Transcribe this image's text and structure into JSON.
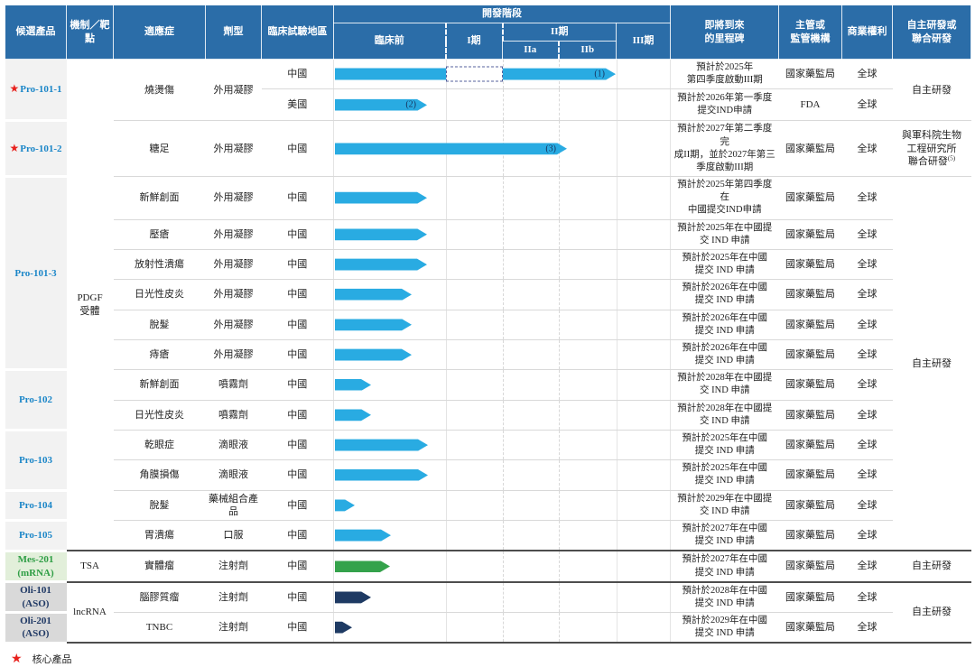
{
  "header": {
    "candidate": "候選產品",
    "mechanism": "機制／靶點",
    "indication": "適應症",
    "form": "劑型",
    "region": "臨床試驗地區",
    "stage_title": "開發階段",
    "preclinical": "臨床前",
    "phase1": "I期",
    "phase2": "II期",
    "phase2a": "IIa",
    "phase2b": "IIb",
    "phase3": "III期",
    "milestone": "即將到來\n的里程碑",
    "regulator": "主管或\n監管機構",
    "rights": "商業權利",
    "development": "自主研發或\n聯合研發"
  },
  "legend": {
    "star": "★",
    "label": "核心產品"
  },
  "colors": {
    "header_bg": "#2b6da8",
    "bar_blue": "#29abe2",
    "bar_green": "#34a24b",
    "bar_navy": "#1e3a63",
    "product_blue": "#1b86c8",
    "product_green": "#2f9e45",
    "product_navy": "#1f3864",
    "star_red": "#e8211d"
  },
  "rows": [
    {
      "product": {
        "text": "Pro-101-1",
        "star": true,
        "style": "blue",
        "span": 2
      },
      "mechanism": {
        "text": "PDGF\n受體",
        "span": 15
      },
      "indication": {
        "text": "燒燙傷",
        "span": 2
      },
      "form": {
        "text": "外用凝膠",
        "span": 2
      },
      "region": "中國",
      "bar": {
        "color": "blue",
        "start": 1,
        "end": 312,
        "gap": [
          124,
          187
        ],
        "label": "(1)"
      },
      "milestone": "預計於2025年\n第四季度啟動III期",
      "regulator": "國家藥監局",
      "rights": "全球",
      "development": {
        "text": "自主研發",
        "span": 2
      }
    },
    {
      "region": "美國",
      "bar": {
        "color": "blue",
        "start": 1,
        "end": 103,
        "label": "(2)"
      },
      "milestone": "預計於2026年第一季度\n提交IND申請",
      "regulator": "FDA",
      "rights": "全球"
    },
    {
      "product": {
        "text": "Pro-101-2",
        "star": true,
        "style": "blue"
      },
      "indication": "糖足",
      "form": "外用凝膠",
      "region": "中國",
      "bar": {
        "color": "blue",
        "start": 1,
        "end": 258,
        "label": "(3)"
      },
      "milestone": "預計於2027年第二季度完\n成II期，並於2027年第三\n季度啟動III期",
      "regulator": "國家藥監局",
      "rights": "全球",
      "development": {
        "text": "與軍科院生物\n工程研究所\n聯合研發",
        "sup": "(5)"
      }
    },
    {
      "product": {
        "text": "Pro-101-3",
        "style": "blue",
        "span": 6
      },
      "indication": "新鮮創面",
      "form": "外用凝膠",
      "region": "中國",
      "bar": {
        "color": "blue",
        "start": 1,
        "end": 103
      },
      "milestone": "預計於2025年第四季度在\n中國提交IND申請",
      "regulator": "國家藥監局",
      "rights": "全球",
      "development": {
        "text": "自主研發",
        "span": 12
      }
    },
    {
      "indication": "壓瘡",
      "form": "外用凝膠",
      "region": "中國",
      "bar": {
        "color": "blue",
        "start": 1,
        "end": 103
      },
      "milestone": "預計於2025年在中國提\n交 IND 申請",
      "regulator": "國家藥監局",
      "rights": "全球"
    },
    {
      "indication": "放射性潰瘍",
      "form": "外用凝膠",
      "region": "中國",
      "bar": {
        "color": "blue",
        "start": 1,
        "end": 103
      },
      "milestone": "預計於2025年在中國\n提交 IND 申請",
      "regulator": "國家藥監局",
      "rights": "全球"
    },
    {
      "indication": "日光性皮炎",
      "form": "外用凝膠",
      "region": "中國",
      "bar": {
        "color": "blue",
        "start": 1,
        "end": 86
      },
      "milestone": "預計於2026年在中國\n提交 IND 申請",
      "regulator": "國家藥監局",
      "rights": "全球"
    },
    {
      "indication": "脫髮",
      "form": "外用凝膠",
      "region": "中國",
      "bar": {
        "color": "blue",
        "start": 1,
        "end": 86
      },
      "milestone": "預計於2026年在中國\n提交 IND 申請",
      "regulator": "國家藥監局",
      "rights": "全球"
    },
    {
      "indication": "痔瘡",
      "form": "外用凝膠",
      "region": "中國",
      "bar": {
        "color": "blue",
        "start": 1,
        "end": 86
      },
      "milestone": "預計於2026年在中國\n提交 IND 申請",
      "regulator": "國家藥監局",
      "rights": "全球"
    },
    {
      "product": {
        "text": "Pro-102",
        "style": "blue",
        "span": 2
      },
      "indication": "新鮮創面",
      "form": "噴霧劑",
      "region": "中國",
      "bar": {
        "color": "blue",
        "start": 1,
        "end": 41
      },
      "milestone": "預計於2028年在中國提\n交 IND 申請",
      "regulator": "國家藥監局",
      "rights": "全球"
    },
    {
      "indication": "日光性皮炎",
      "form": "噴霧劑",
      "region": "中國",
      "bar": {
        "color": "blue",
        "start": 1,
        "end": 41
      },
      "milestone": "預計於2028年在中國提\n交 IND 申請",
      "regulator": "國家藥監局",
      "rights": "全球"
    },
    {
      "product": {
        "text": "Pro-103",
        "style": "blue",
        "span": 2
      },
      "indication": "乾眼症",
      "form": "滴眼液",
      "region": "中國",
      "bar": {
        "color": "blue",
        "start": 1,
        "end": 104
      },
      "milestone": "預計於2025年在中國\n提交 IND 申請",
      "regulator": "國家藥監局",
      "rights": "全球"
    },
    {
      "indication": "角膜損傷",
      "form": "滴眼液",
      "region": "中國",
      "bar": {
        "color": "blue",
        "start": 1,
        "end": 104
      },
      "milestone": "預計於2025年在中國\n提交 IND 申請",
      "regulator": "國家藥監局",
      "rights": "全球"
    },
    {
      "product": {
        "text": "Pro-104",
        "style": "blue"
      },
      "indication": "脫髮",
      "form": "藥械組合產品",
      "region": "中國",
      "bar": {
        "color": "blue",
        "start": 1,
        "end": 23
      },
      "milestone": "預計於2029年在中國提\n交 IND 申請",
      "regulator": "國家藥監局",
      "rights": "全球"
    },
    {
      "product": {
        "text": "Pro-105",
        "style": "blue"
      },
      "indication": "胃潰瘍",
      "form": "口服",
      "region": "中國",
      "bar": {
        "color": "blue",
        "start": 1,
        "end": 63
      },
      "milestone": "預計於2027年在中國\n提交 IND 申請",
      "regulator": "國家藥監局",
      "rights": "全球"
    },
    {
      "product": {
        "text": "Mes-201\n(mRNA)",
        "style": "green"
      },
      "mechanism": "TSA",
      "indication": "實體瘤",
      "form": "注射劑",
      "region": "中國",
      "bar": {
        "color": "green",
        "start": 1,
        "end": 62
      },
      "milestone": "預計於2027年在中國\n提交 IND 申請",
      "regulator": "國家藥監局",
      "rights": "全球",
      "development": "自主研發"
    },
    {
      "product": {
        "text": "Oli-101\n(ASO)",
        "style": "navy"
      },
      "mechanism": {
        "text": "lncRNA",
        "span": 2
      },
      "indication": "腦膠質瘤",
      "form": "注射劑",
      "region": "中國",
      "bar": {
        "color": "navy",
        "start": 1,
        "end": 41
      },
      "milestone": "預計於2028年在中國\n提交 IND 申請",
      "regulator": "國家藥監局",
      "rights": "全球",
      "development": {
        "text": "自主研發",
        "span": 2
      }
    },
    {
      "product": {
        "text": "Oli-201\n(ASO)",
        "style": "navy"
      },
      "indication": "TNBC",
      "form": "注射劑",
      "region": "中國",
      "bar": {
        "color": "navy",
        "start": 1,
        "end": 20
      },
      "milestone": "預計於2029年在中國\n提交 IND 申請",
      "regulator": "國家藥監局",
      "rights": "全球"
    }
  ],
  "chart_data": {
    "type": "bar",
    "orientation": "horizontal",
    "title": "開發階段",
    "stage_axis": [
      "臨床前",
      "I期",
      "IIa",
      "IIb",
      "III期"
    ],
    "note": "progress: 1=臨床前完成, 2=I期完成, 3=IIa完成, 4=IIb完成, 5=III期完成",
    "items": [
      {
        "label": "Pro-101-1 燒燙傷 中國",
        "progress": 4.0,
        "marker": "(1)",
        "phase1_skipped": true
      },
      {
        "label": "Pro-101-1 燒燙傷 美國",
        "progress": 0.83,
        "marker": "(2)"
      },
      {
        "label": "Pro-101-2 糖足 中國",
        "progress": 3.1,
        "marker": "(3)"
      },
      {
        "label": "Pro-101-3 新鮮創面",
        "progress": 0.83
      },
      {
        "label": "Pro-101-3 壓瘡",
        "progress": 0.83
      },
      {
        "label": "Pro-101-3 放射性潰瘍",
        "progress": 0.83
      },
      {
        "label": "Pro-101-3 日光性皮炎",
        "progress": 0.69
      },
      {
        "label": "Pro-101-3 脫髮",
        "progress": 0.69
      },
      {
        "label": "Pro-101-3 痔瘡",
        "progress": 0.69
      },
      {
        "label": "Pro-102 新鮮創面",
        "progress": 0.33
      },
      {
        "label": "Pro-102 日光性皮炎",
        "progress": 0.33
      },
      {
        "label": "Pro-103 乾眼症",
        "progress": 0.84
      },
      {
        "label": "Pro-103 角膜損傷",
        "progress": 0.84
      },
      {
        "label": "Pro-104 脫髮",
        "progress": 0.19
      },
      {
        "label": "Pro-105 胃潰瘍",
        "progress": 0.51
      },
      {
        "label": "Mes-201 實體瘤",
        "progress": 0.5
      },
      {
        "label": "Oli-101 腦膠質瘤",
        "progress": 0.33
      },
      {
        "label": "Oli-201 TNBC",
        "progress": 0.16
      }
    ]
  }
}
